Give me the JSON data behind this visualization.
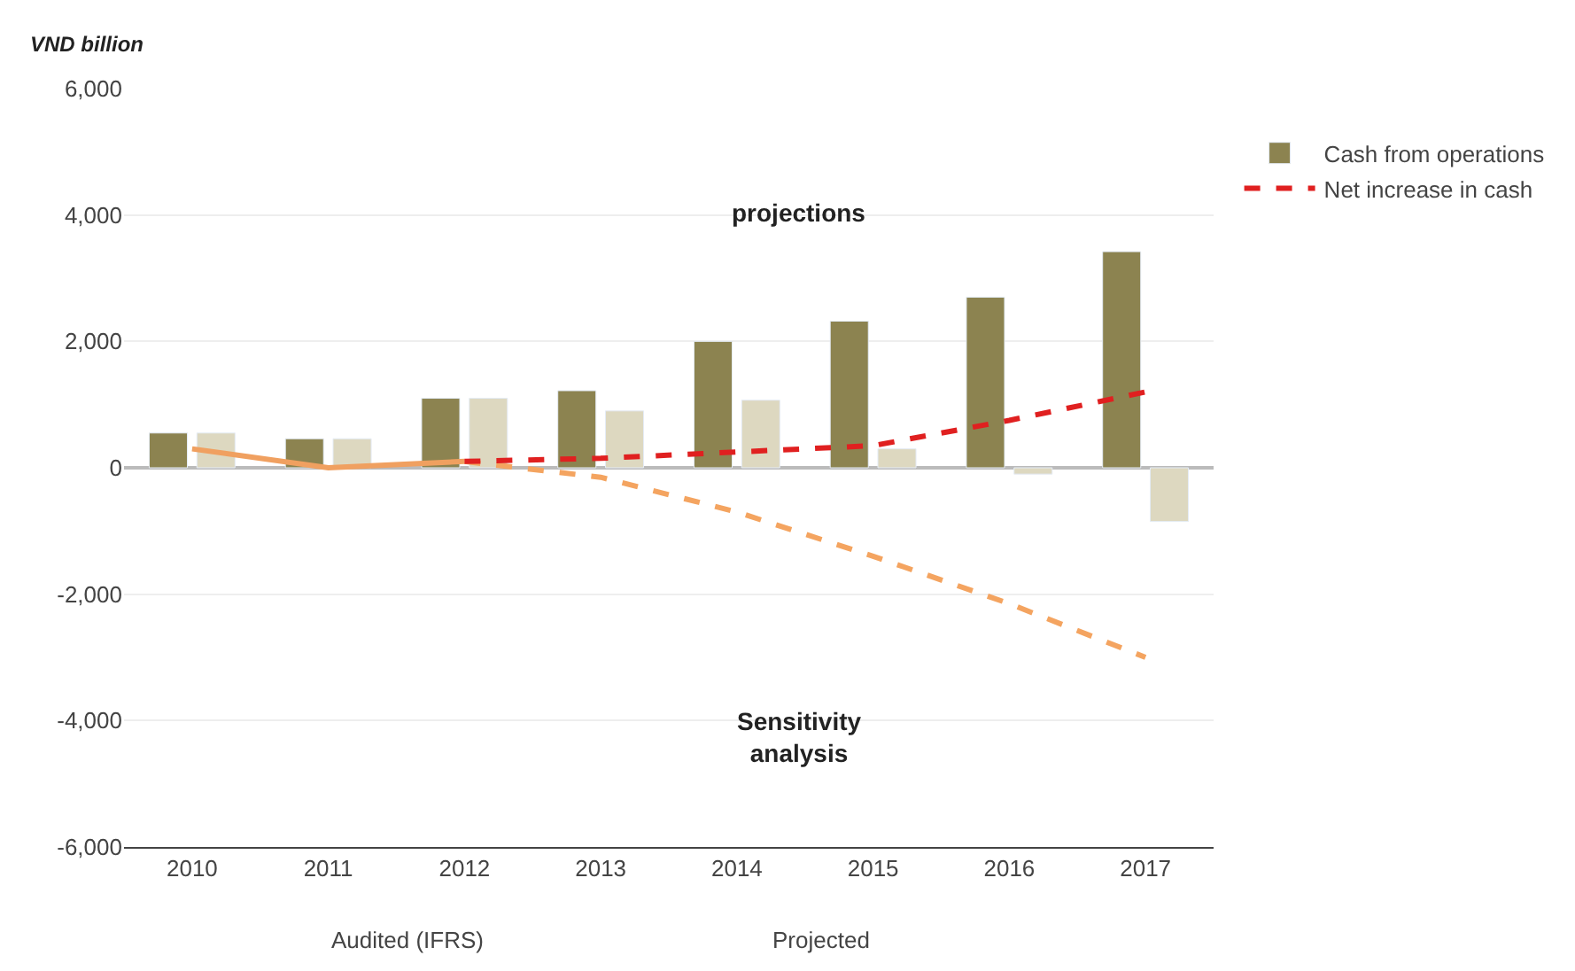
{
  "chart_data": {
    "type": "bar",
    "ylabel": "VND billion",
    "categories": [
      "2010",
      "2011",
      "2012",
      "2013",
      "2014",
      "2015",
      "2016",
      "2017"
    ],
    "series": [
      {
        "name": "Cash from operations",
        "color": "#8c8350",
        "values": [
          550,
          460,
          1100,
          1220,
          2000,
          2320,
          2700,
          3420
        ]
      },
      {
        "color": "#ddd8c0",
        "values": [
          550,
          460,
          1100,
          900,
          1070,
          300,
          -100,
          -850
        ]
      },
      {
        "type": "line",
        "color": "#f0a060",
        "line_style": "solid",
        "values": [
          300,
          0,
          100,
          null,
          null,
          null,
          null,
          null
        ]
      },
      {
        "type": "line",
        "color": "#f4a460",
        "line_style": "dashed",
        "values": [
          null,
          null,
          100,
          -150,
          -700,
          -1400,
          -2150,
          -3000
        ]
      },
      {
        "name": "Net increase in cash",
        "type": "line",
        "color": "#e02020",
        "line_style": "dashed",
        "values": [
          null,
          null,
          100,
          150,
          250,
          350,
          750,
          1200
        ]
      }
    ],
    "ylim": [
      -6000,
      6000
    ],
    "yticks": [
      {
        "value": -6000,
        "label": "-6,000"
      },
      {
        "value": -4000,
        "label": "-4,000"
      },
      {
        "value": -2000,
        "label": "-2,000"
      },
      0,
      {
        "value": 2000,
        "label": "2,000"
      },
      {
        "value": 4000,
        "label": "4,000"
      },
      {
        "value": 6000,
        "label": "6,000"
      }
    ],
    "grid": "y",
    "legend": "top right",
    "annotations": [
      "projections",
      "Sensitivity analysis",
      "Audited (IFRS)",
      "Projected"
    ]
  }
}
